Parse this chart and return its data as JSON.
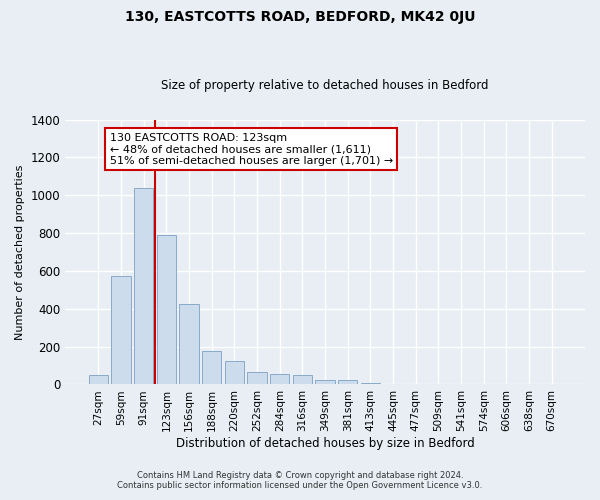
{
  "title": "130, EASTCOTTS ROAD, BEDFORD, MK42 0JU",
  "subtitle": "Size of property relative to detached houses in Bedford",
  "xlabel": "Distribution of detached houses by size in Bedford",
  "ylabel": "Number of detached properties",
  "bar_labels": [
    "27sqm",
    "59sqm",
    "91sqm",
    "123sqm",
    "156sqm",
    "188sqm",
    "220sqm",
    "252sqm",
    "284sqm",
    "316sqm",
    "349sqm",
    "381sqm",
    "413sqm",
    "445sqm",
    "477sqm",
    "509sqm",
    "541sqm",
    "574sqm",
    "606sqm",
    "638sqm",
    "670sqm"
  ],
  "bar_values": [
    50,
    575,
    1040,
    790,
    425,
    175,
    125,
    65,
    55,
    50,
    25,
    22,
    10,
    5,
    3,
    0,
    0,
    0,
    0,
    0,
    0
  ],
  "bar_color": "#ccdcec",
  "bar_edgecolor": "#88aac8",
  "ylim": [
    0,
    1400
  ],
  "yticks": [
    0,
    200,
    400,
    600,
    800,
    1000,
    1200,
    1400
  ],
  "property_line_color": "#cc0000",
  "annotation_text": "130 EASTCOTTS ROAD: 123sqm\n← 48% of detached houses are smaller (1,611)\n51% of semi-detached houses are larger (1,701) →",
  "annotation_box_edgecolor": "#cc0000",
  "footer_line1": "Contains HM Land Registry data © Crown copyright and database right 2024.",
  "footer_line2": "Contains public sector information licensed under the Open Government Licence v3.0.",
  "background_color": "#e8eef4",
  "plot_background_color": "#e8eef4",
  "grid_color": "#ffffff",
  "title_fontsize": 10,
  "subtitle_fontsize": 8.5,
  "ylabel_fontsize": 8,
  "xlabel_fontsize": 8.5,
  "tick_fontsize": 7.5,
  "ytick_fontsize": 8.5,
  "annotation_fontsize": 8,
  "footer_fontsize": 6
}
